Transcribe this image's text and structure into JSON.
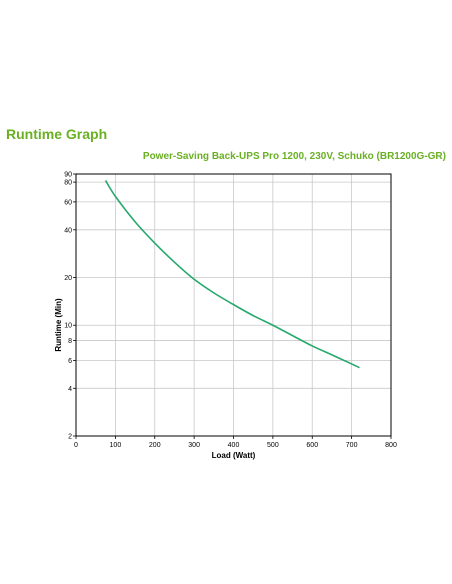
{
  "heading": "Runtime Graph",
  "colors": {
    "accent": "#6ab023",
    "curve": "#27a86c",
    "grid": "#c8c8c8",
    "axis": "#000000"
  },
  "chart_data": {
    "type": "line",
    "title": "Power-Saving Back-UPS Pro 1200, 230V, Schuko (BR1200G-GR)",
    "xlabel": "Load (Watt)",
    "ylabel": "Runtime (Min)",
    "xlim": [
      0,
      800
    ],
    "ylim": [
      2,
      90
    ],
    "yscale": "log",
    "grid": true,
    "x_ticks": [
      0,
      100,
      200,
      300,
      400,
      500,
      600,
      700,
      800
    ],
    "y_ticks": [
      2,
      4,
      6,
      8,
      10,
      20,
      40,
      60,
      80,
      90
    ],
    "series": [
      {
        "x": [
          75,
          100,
          150,
          200,
          250,
          300,
          350,
          400,
          450,
          500,
          550,
          600,
          650,
          700,
          720
        ],
        "y": [
          82,
          65,
          45,
          33,
          25,
          19.5,
          16,
          13.5,
          11.5,
          10,
          8.6,
          7.4,
          6.5,
          5.7,
          5.4
        ]
      }
    ]
  }
}
